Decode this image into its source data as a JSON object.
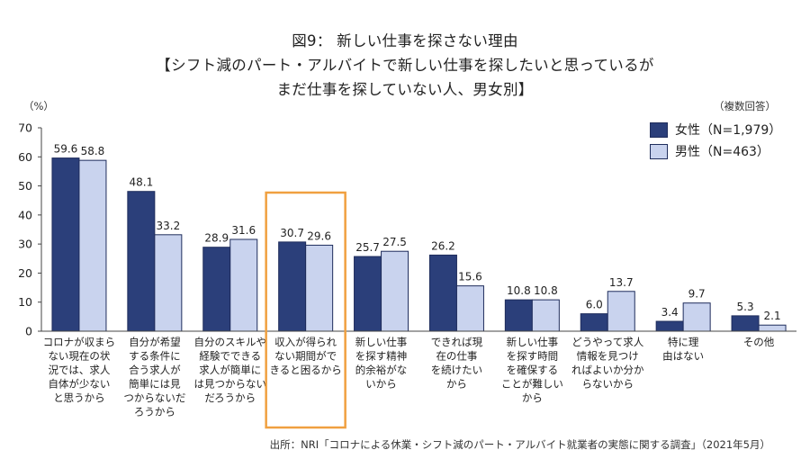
{
  "title_lines": [
    "図9： 新しい仕事を探さない理由",
    "【シフト減のパート・アルバイトで新しい仕事を探したいと思っているが",
    "まだ仕事を探していない人、男女別】"
  ],
  "unit_label": "（%）",
  "note_label": "（複数回答）",
  "source": "出所：NRI「コロナによる休業・シフト減のパート・アルバイト就業者の実態に関する調査」（2021年5月）",
  "colors": {
    "female": "#2b3f7a",
    "male": "#c9d3ee",
    "highlight": "#f0a040"
  },
  "chart_data": {
    "type": "bar",
    "ylim": [
      0,
      70
    ],
    "yticks": [
      0,
      10,
      20,
      30,
      40,
      50,
      60,
      70
    ],
    "categories": [
      [
        "コロナが収まら",
        "ない現在の状",
        "況では、求人",
        "自体が少ない",
        "と思うから"
      ],
      [
        "自分が希望",
        "する条件に",
        "合う求人が",
        "簡単には見",
        "つからないだ",
        "ろうから"
      ],
      [
        "自分のスキルや",
        "経験でできる",
        "求人が簡単に",
        "は見つからない",
        "だろうから"
      ],
      [
        "収入が得られ",
        "ない期間がで",
        "きると困るから"
      ],
      [
        "新しい仕事",
        "を探す精神",
        "的余裕がな",
        "いから"
      ],
      [
        "できれば現",
        "在の仕事",
        "を続けたい",
        "から"
      ],
      [
        "新しい仕事",
        "を探す時間",
        "を確保する",
        "ことが難しい",
        "から"
      ],
      [
        "どうやって求人",
        "情報を見つけ",
        "ればよいか分か",
        "らないから"
      ],
      [
        "特に理",
        "由はない"
      ],
      [
        "その他"
      ]
    ],
    "series": [
      {
        "name": "女性（N=1,979）",
        "values": [
          59.6,
          48.1,
          28.9,
          30.7,
          25.7,
          26.2,
          10.8,
          6.0,
          3.4,
          5.3
        ]
      },
      {
        "name": "男性（N=463）",
        "values": [
          58.8,
          33.2,
          31.6,
          29.6,
          27.5,
          15.6,
          10.8,
          13.7,
          9.7,
          2.1
        ]
      }
    ],
    "highlighted_category_index": 3,
    "legend_position": "top-right"
  }
}
